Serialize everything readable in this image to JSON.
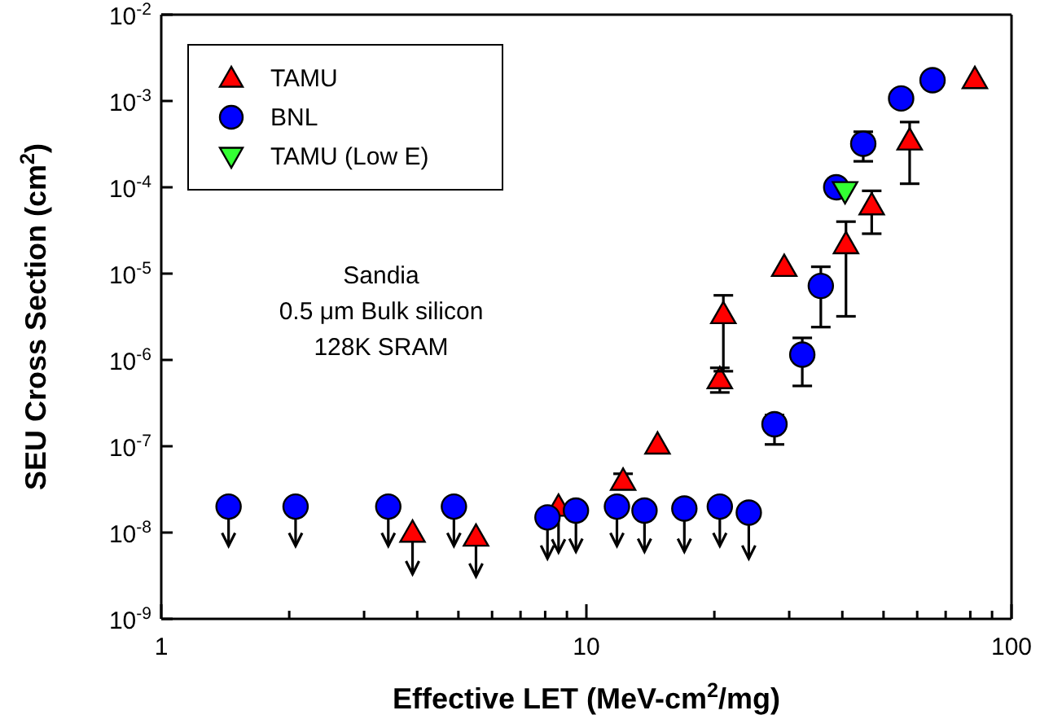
{
  "chart_data": {
    "type": "scatter",
    "xlabel": "Effective LET (MeV-cm$^{2}$/mg)",
    "ylabel": "SEU Cross Section (cm$^{2}$)",
    "log": "xy",
    "xlim": [
      1,
      100
    ],
    "xticks": [
      1,
      {
        "value": 2,
        "label": null
      },
      {
        "value": 3,
        "label": null
      },
      {
        "value": 4,
        "label": null
      },
      {
        "value": 5,
        "label": null
      },
      {
        "value": 6,
        "label": null
      },
      {
        "value": 7,
        "label": null
      },
      {
        "value": 8,
        "label": null
      },
      {
        "value": 9,
        "label": null
      },
      10,
      {
        "value": 20,
        "label": null
      },
      {
        "value": 30,
        "label": null
      },
      {
        "value": 40,
        "label": null
      },
      {
        "value": 50,
        "label": null
      },
      {
        "value": 60,
        "label": null
      },
      {
        "value": 70,
        "label": null
      },
      {
        "value": 80,
        "label": null
      },
      {
        "value": 90,
        "label": null
      },
      100
    ],
    "ylim": [
      1e-09,
      0.01
    ],
    "yticks": [
      {
        "value": 1e-09,
        "label": "10$^{-9}$"
      },
      {
        "value": 1e-08,
        "label": "10$^{-8}$"
      },
      {
        "value": 1e-07,
        "label": "10$^{-7}$"
      },
      {
        "value": 1e-06,
        "label": "10$^{-6}$"
      },
      {
        "value": 1e-05,
        "label": "10$^{-5}$"
      },
      {
        "value": 0.0001,
        "label": "10$^{-4}$"
      },
      {
        "value": 0.001,
        "label": "10$^{-3}$"
      },
      {
        "value": 0.01,
        "label": "10$^{-2}$"
      }
    ],
    "grid": false,
    "legend": "top left",
    "annotations": [
      "Sandia\n0.5 μm Bulk silicon\n128K SRAM"
    ],
    "series": [
      {
        "name": "TAMU",
        "color": "#ff0000",
        "marker": "triangle",
        "x": [
          3.9,
          5.5,
          8.6,
          12.2,
          14.7,
          20.6,
          21.0,
          29.2,
          40.8,
          46.9,
          57.6,
          82
        ],
        "values": [
          1e-08,
          9e-09,
          2e-08,
          4e-08,
          1.05e-07,
          6e-07,
          3.4e-06,
          1.2e-05,
          2.2e-05,
          6.2e-05,
          0.00035,
          0.0018
        ],
        "errors": [
          [
            3.3e-09,
            1e-08
          ],
          [
            3.1e-09,
            9e-09
          ],
          [
            5.9e-09,
            2e-08
          ],
          [
            3.2e-08,
            4.8e-08
          ],
          null,
          [
            4.2e-07,
            8.1e-07
          ],
          [
            7.4e-07,
            5.6e-06
          ],
          null,
          [
            3.2e-06,
            4e-05
          ],
          [
            2.9e-05,
            9.1e-05
          ],
          [
            0.00011,
            0.00057
          ],
          null
        ]
      },
      {
        "name": "BNL",
        "color": "#0000ff",
        "marker": "circle",
        "x": [
          1.44,
          2.07,
          3.42,
          4.88,
          8.1,
          9.45,
          11.8,
          13.7,
          17.0,
          20.6,
          24.1,
          27.7,
          32.2,
          35.6,
          38.7,
          44.8,
          55,
          65.2
        ],
        "values": [
          2e-08,
          2e-08,
          2e-08,
          2e-08,
          1.5e-08,
          1.8e-08,
          2e-08,
          1.8e-08,
          1.9e-08,
          2e-08,
          1.7e-08,
          1.8e-07,
          1.15e-06,
          7.2e-06,
          0.0001,
          0.00032,
          0.00107,
          0.00174
        ],
        "errors": [
          [
            7e-09,
            2e-08
          ],
          [
            7e-09,
            2e-08
          ],
          [
            7e-09,
            2e-08
          ],
          [
            7e-09,
            2e-08
          ],
          [
            5e-09,
            1.5e-08
          ],
          [
            6e-09,
            1.8e-08
          ],
          [
            7e-09,
            2e-08
          ],
          [
            6e-09,
            1.8e-08
          ],
          [
            6e-09,
            1.9e-08
          ],
          [
            7e-09,
            2e-08
          ],
          [
            5e-09,
            1.7e-08
          ],
          [
            1.05e-07,
            2.3e-07
          ],
          [
            5e-07,
            1.8e-06
          ],
          [
            2.4e-06,
            1.2e-05
          ],
          null,
          [
            0.0002,
            0.00044
          ],
          null,
          null
        ]
      },
      {
        "name": "TAMU (Low E)",
        "color": "#33ff33",
        "marker": "triangle-down",
        "x": [
          40.6
        ],
        "values": [
          9e-05
        ]
      }
    ]
  }
}
